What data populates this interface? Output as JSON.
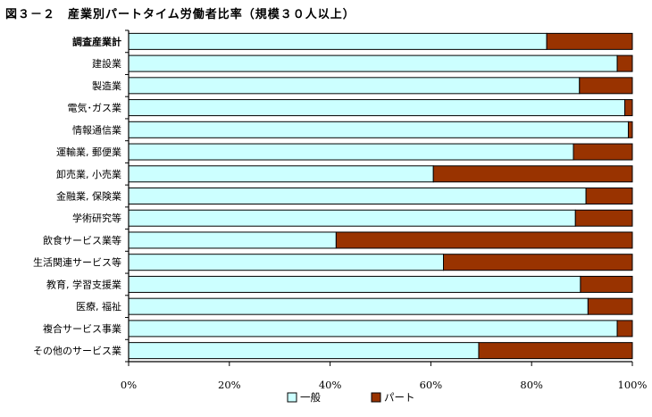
{
  "title": "図３－２　産業別パートタイム労働者比率（規模３０人以上）",
  "colors": {
    "ippan": "#ccffff",
    "part": "#993300",
    "border": "#000000"
  },
  "chart_data": {
    "type": "bar",
    "orientation": "horizontal",
    "stacked": true,
    "percent": true,
    "categories": [
      "調査産業計",
      "建設業",
      "製造業",
      "電気･ガス業",
      "情報通信業",
      "運輸業, 郵便業",
      "卸売業, 小売業",
      "金融業, 保険業",
      "学術研究等",
      "飲食サービス業等",
      "生活関連サービス等",
      "教育, 学習支援業",
      "医療, 福祉",
      "複合サービス事業",
      "その他のサービス業"
    ],
    "bold_categories": [
      "調査産業計"
    ],
    "series": [
      {
        "name": "一般",
        "values": [
          83,
          97,
          89.5,
          98.5,
          99.2,
          88.3,
          60.5,
          90.8,
          88.7,
          41.2,
          62.5,
          89.7,
          91.2,
          97,
          69.5
        ]
      },
      {
        "name": "パート",
        "values": [
          17,
          3,
          10.5,
          1.5,
          0.8,
          11.7,
          39.5,
          9.2,
          11.3,
          58.8,
          37.5,
          10.3,
          8.8,
          3,
          30.5
        ]
      }
    ],
    "xlim": [
      0,
      100
    ],
    "xticks": [
      "0%",
      "20%",
      "40%",
      "60%",
      "80%",
      "100%"
    ],
    "grid": false,
    "legend": "bottom"
  }
}
